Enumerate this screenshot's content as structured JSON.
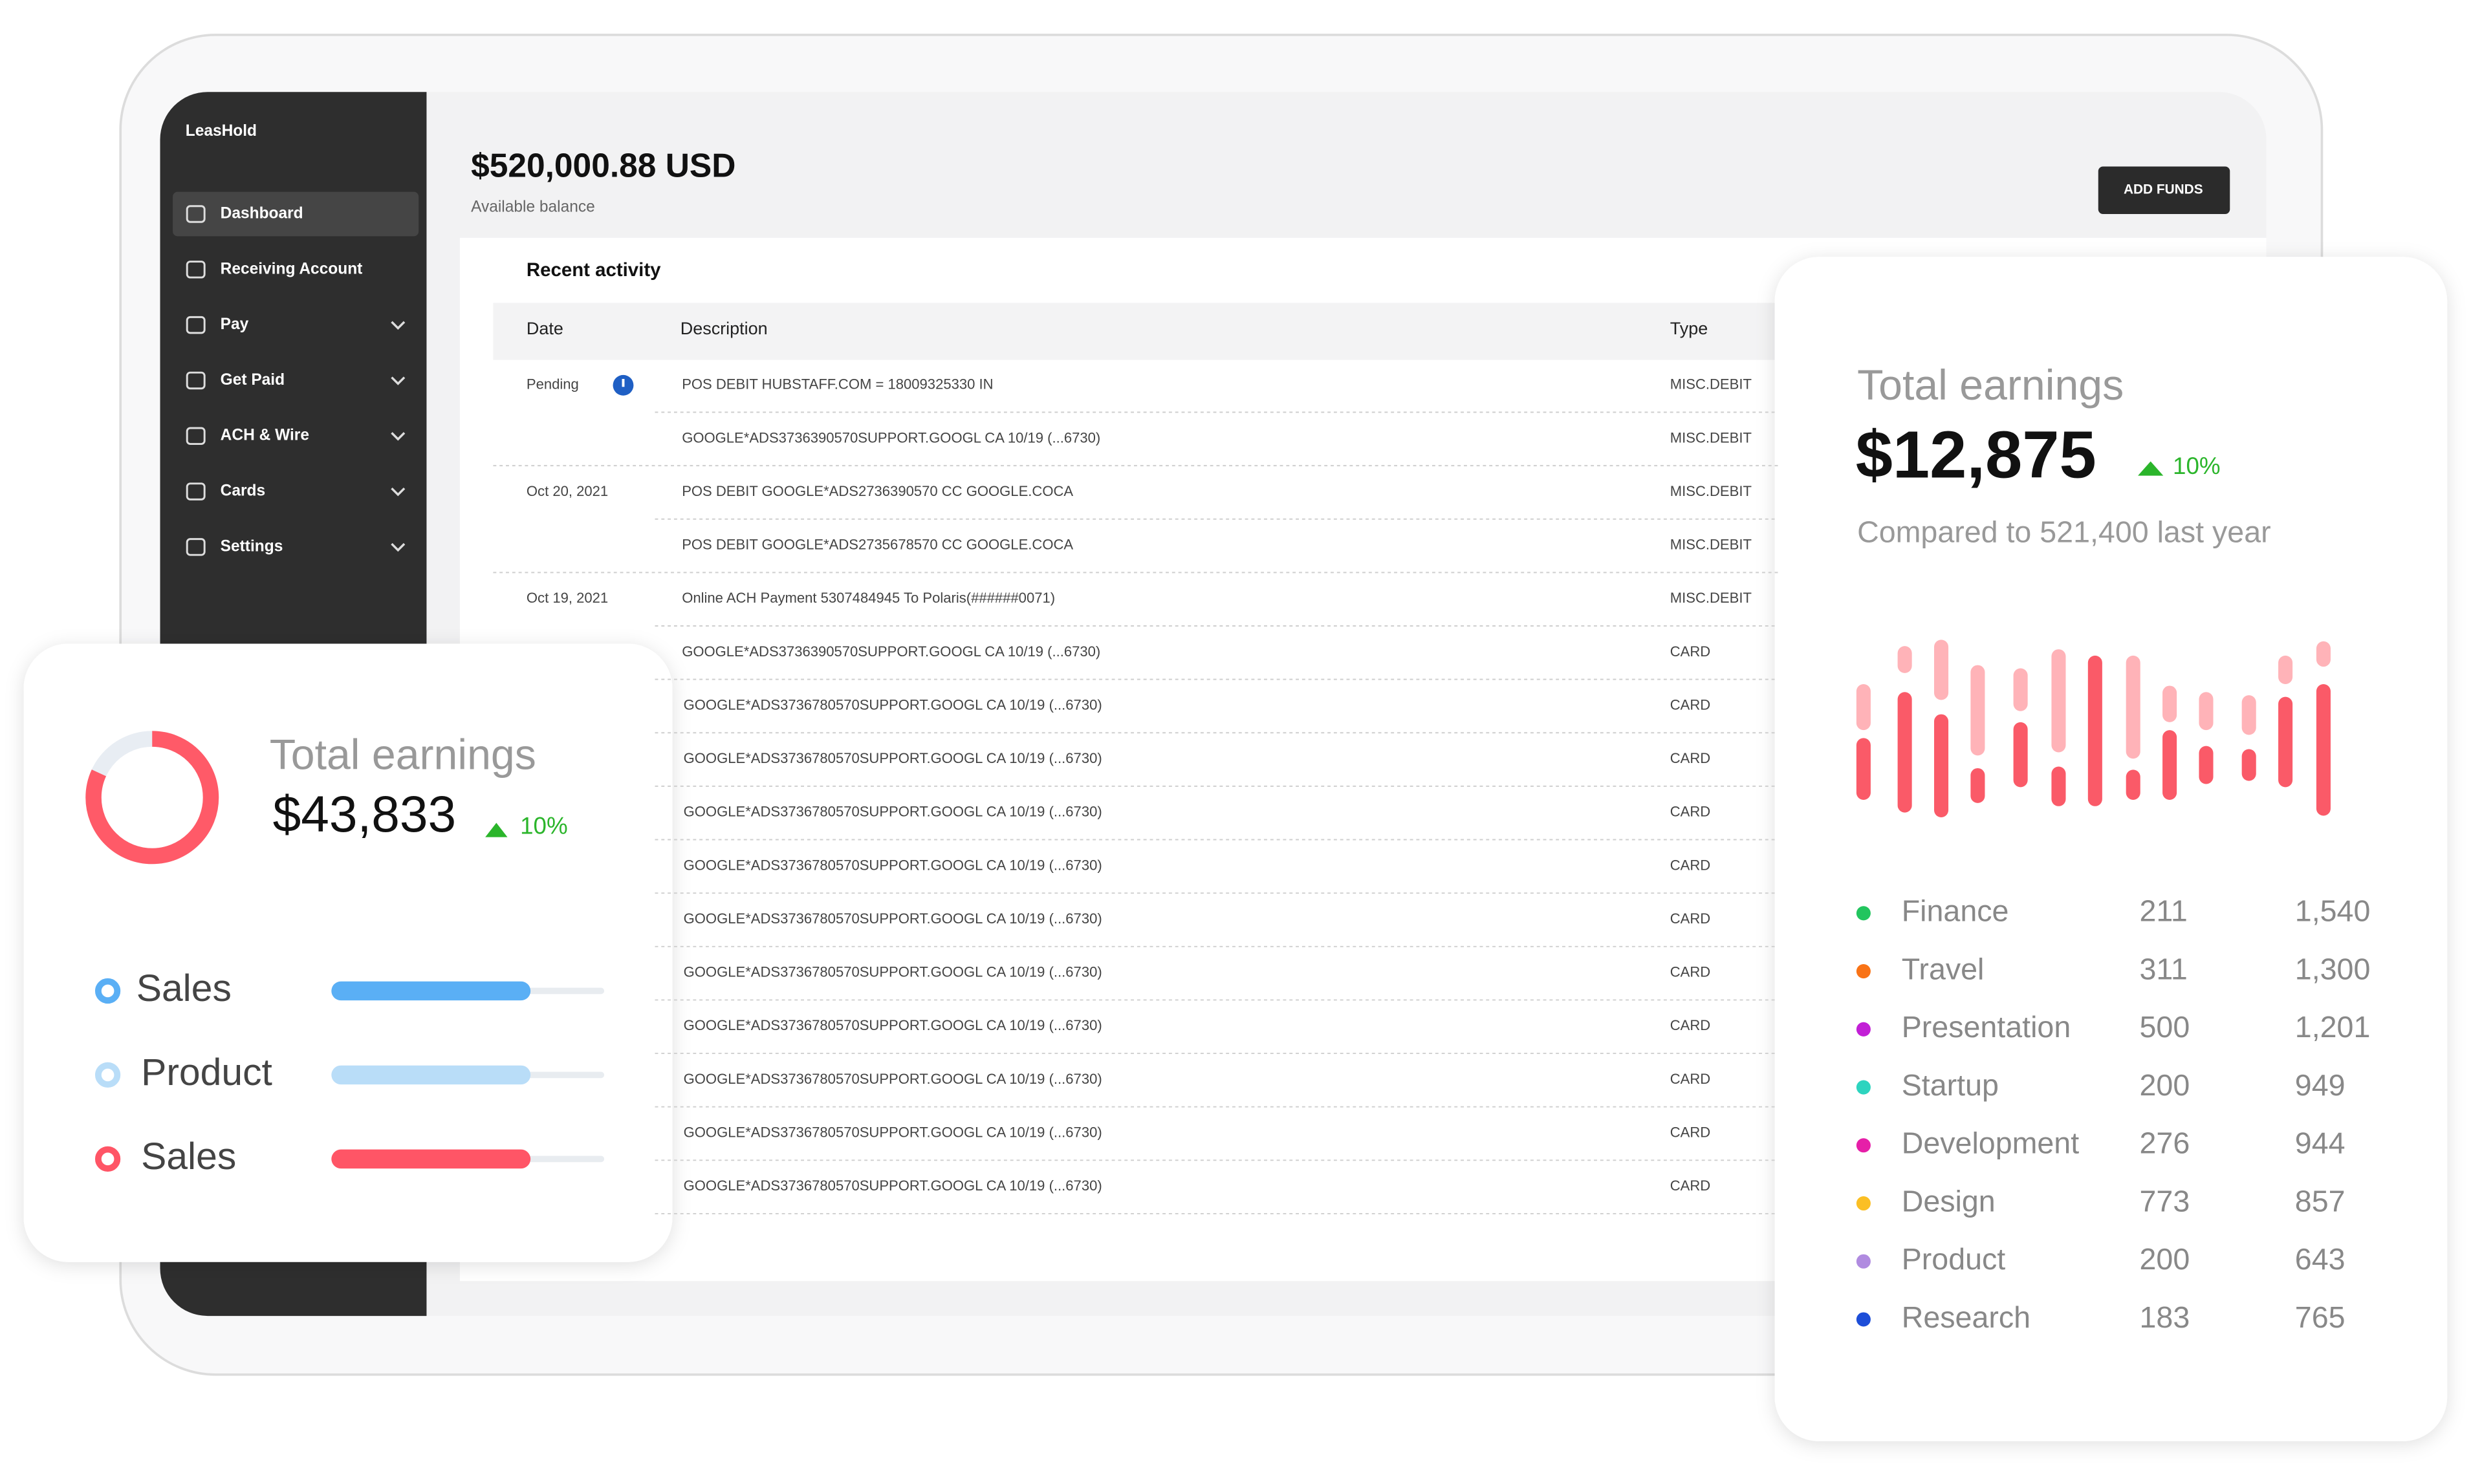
{
  "sidebar": {
    "brand": "LeasHold",
    "items": [
      {
        "label": "Dashboard",
        "expandable": false,
        "active": true
      },
      {
        "label": "Receiving Account",
        "expandable": false,
        "active": false
      },
      {
        "label": "Pay",
        "expandable": true,
        "active": false
      },
      {
        "label": "Get Paid",
        "expandable": true,
        "active": false
      },
      {
        "label": "ACH & Wire",
        "expandable": true,
        "active": false
      },
      {
        "label": "Cards",
        "expandable": true,
        "active": false
      },
      {
        "label": "Settings",
        "expandable": true,
        "active": false
      }
    ]
  },
  "header": {
    "balance": "$520,000.88 USD",
    "balance_label": "Available balance",
    "button": "ADD FUNDS"
  },
  "activity": {
    "title": "Recent activity",
    "columns": [
      "Date",
      "Description",
      "Type"
    ],
    "rows": [
      [
        "Pending",
        "POS DEBIT HUBSTAFF.COM = 18009325330 IN",
        "MISC.DEBIT"
      ],
      [
        null,
        "GOOGLE*ADS3736390570SUPPORT.GOOGL CA 10/19 (...6730)",
        "MISC.DEBIT"
      ],
      [
        "Oct 20, 2021",
        "POS DEBIT GOOGLE*ADS2736390570 CC GOOGLE.COCA",
        "MISC.DEBIT"
      ],
      [
        null,
        "POS DEBIT GOOGLE*ADS2735678570 CC GOOGLE.COCA",
        "MISC.DEBIT"
      ],
      [
        "Oct 19, 2021",
        "Online ACH Payment 5307484945 To Polaris(######0071)",
        "MISC.DEBIT"
      ],
      [
        null,
        "GOOGLE*ADS3736390570SUPPORT.GOOGL CA 10/19 (...6730)",
        "CARD"
      ],
      [
        null,
        "GOOGLE*ADS3736780570SUPPORT.GOOGL CA 10/19 (...6730)",
        "CARD"
      ],
      [
        null,
        "GOOGLE*ADS3736780570SUPPORT.GOOGL CA 10/19 (...6730)",
        "CARD"
      ],
      [
        null,
        "GOOGLE*ADS3736780570SUPPORT.GOOGL CA 10/19 (...6730)",
        "CARD"
      ],
      [
        null,
        "GOOGLE*ADS3736780570SUPPORT.GOOGL CA 10/19 (...6730)",
        "CARD"
      ],
      [
        null,
        "GOOGLE*ADS3736780570SUPPORT.GOOGL CA 10/19 (...6730)",
        "CARD"
      ],
      [
        null,
        "GOOGLE*ADS3736780570SUPPORT.GOOGL CA 10/19 (...6730)",
        "CARD"
      ],
      [
        null,
        "GOOGLE*ADS3736780570SUPPORT.GOOGL CA 10/19 (...6730)",
        "CARD"
      ],
      [
        null,
        "GOOGLE*ADS3736780570SUPPORT.GOOGL CA 10/19 (...6730)",
        "CARD"
      ],
      [
        null,
        "GOOGLE*ADS3736780570SUPPORT.GOOGL CA 10/19 (...6730)",
        "CARD"
      ],
      [
        null,
        "GOOGLE*ADS3736780570SUPPORT.GOOGL CA 10/19 (...6730)",
        "CARD"
      ]
    ]
  },
  "left_card": {
    "title": "Total earnings",
    "value": "$43,833",
    "change": "10%",
    "donut": 82,
    "legend": [
      {
        "name": "Sales",
        "color": "#5aaff5",
        "progress": 73
      },
      {
        "name": "Product",
        "color": "#b9ddf8",
        "progress": 73
      },
      {
        "name": "Sales",
        "color": "#ff5566",
        "progress": 73
      }
    ]
  },
  "right_card": {
    "title": "Total earnings",
    "value": "$12,875",
    "change": "10%",
    "comparison": "Compared to 521,400 last year",
    "breakdown": [
      {
        "name": "Finance",
        "color": "#22c55e",
        "count": "211",
        "total": "1,540"
      },
      {
        "name": "Travel",
        "color": "#f97316",
        "count": "311",
        "total": "1,300"
      },
      {
        "name": "Presentation",
        "color": "#c21fd6",
        "count": "500",
        "total": "1,201"
      },
      {
        "name": "Startup",
        "color": "#2dd4bf",
        "count": "200",
        "total": "949"
      },
      {
        "name": "Development",
        "color": "#e61fa8",
        "count": "276",
        "total": "944"
      },
      {
        "name": "Design",
        "color": "#fbbf24",
        "count": "773",
        "total": "857"
      },
      {
        "name": "Product",
        "color": "#b08be0",
        "count": "200",
        "total": "643"
      },
      {
        "name": "Research",
        "color": "#1d4ed8",
        "count": "183",
        "total": "765"
      }
    ]
  }
}
